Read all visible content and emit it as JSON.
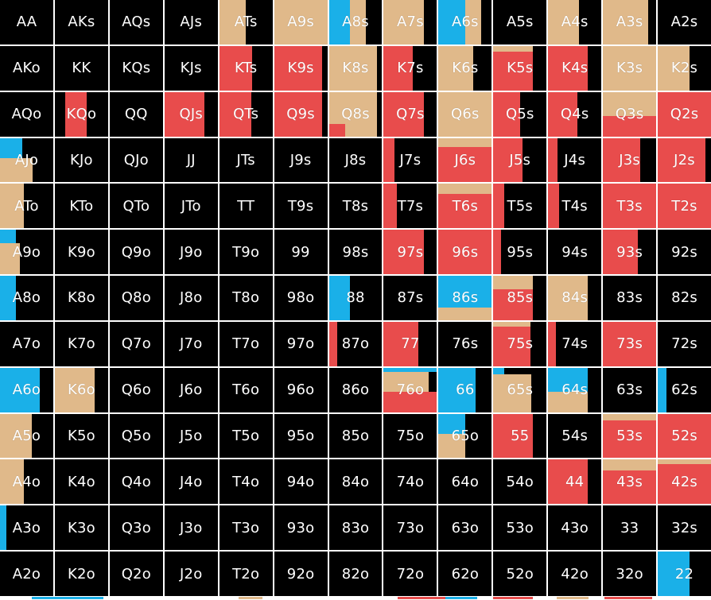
{
  "colors": {
    "fold": "#000000",
    "call": "#e0b98a",
    "raise": "#e84c4c",
    "allin": "#1ab0e8",
    "label": "#ffffff",
    "gridline": "#ffffff"
  },
  "hands": [
    [
      "AA",
      "AKs",
      "AQs",
      "AJs",
      "ATs",
      "A9s",
      "A8s",
      "A7s",
      "A6s",
      "A5s",
      "A4s",
      "A3s",
      "A2s"
    ],
    [
      "AKo",
      "KK",
      "KQs",
      "KJs",
      "KTs",
      "K9s",
      "K8s",
      "K7s",
      "K6s",
      "K5s",
      "K4s",
      "K3s",
      "K2s"
    ],
    [
      "AQo",
      "KQo",
      "QQ",
      "QJs",
      "QTs",
      "Q9s",
      "Q8s",
      "Q7s",
      "Q6s",
      "Q5s",
      "Q4s",
      "Q3s",
      "Q2s"
    ],
    [
      "AJo",
      "KJo",
      "QJo",
      "JJ",
      "JTs",
      "J9s",
      "J8s",
      "J7s",
      "J6s",
      "J5s",
      "J4s",
      "J3s",
      "J2s"
    ],
    [
      "ATo",
      "KTo",
      "QTo",
      "JTo",
      "TT",
      "T9s",
      "T8s",
      "T7s",
      "T6s",
      "T5s",
      "T4s",
      "T3s",
      "T2s"
    ],
    [
      "A9o",
      "K9o",
      "Q9o",
      "J9o",
      "T9o",
      "99",
      "98s",
      "97s",
      "96s",
      "95s",
      "94s",
      "93s",
      "92s"
    ],
    [
      "A8o",
      "K8o",
      "Q8o",
      "J8o",
      "T8o",
      "98o",
      "88",
      "87s",
      "86s",
      "85s",
      "84s",
      "83s",
      "82s"
    ],
    [
      "A7o",
      "K7o",
      "Q7o",
      "J7o",
      "T7o",
      "97o",
      "87o",
      "77",
      "76s",
      "75s",
      "74s",
      "73s",
      "72s"
    ],
    [
      "A6o",
      "K6o",
      "Q6o",
      "J6o",
      "T6o",
      "96o",
      "86o",
      "76o",
      "66",
      "65s",
      "64s",
      "63s",
      "62s"
    ],
    [
      "A5o",
      "K5o",
      "Q5o",
      "J5o",
      "T5o",
      "95o",
      "85o",
      "75o",
      "65o",
      "55",
      "54s",
      "53s",
      "52s"
    ],
    [
      "A4o",
      "K4o",
      "Q4o",
      "J4o",
      "T4o",
      "94o",
      "84o",
      "74o",
      "64o",
      "54o",
      "44",
      "43s",
      "42s"
    ],
    [
      "A3o",
      "K3o",
      "Q3o",
      "J3o",
      "T3o",
      "93o",
      "83o",
      "73o",
      "63o",
      "53o",
      "43o",
      "33",
      "32s"
    ],
    [
      "A2o",
      "K2o",
      "Q2o",
      "J2o",
      "T2o",
      "92o",
      "82o",
      "72o",
      "62o",
      "52o",
      "42o",
      "32o",
      "22"
    ]
  ],
  "fills": {
    "ATs": [
      [
        "call",
        0,
        0,
        0.5,
        1
      ]
    ],
    "A9s": [
      [
        "call",
        0,
        0,
        1,
        1
      ]
    ],
    "A8s": [
      [
        "allin",
        0,
        0,
        0.4,
        1
      ],
      [
        "call",
        0.4,
        0,
        0.3,
        1
      ]
    ],
    "A7s": [
      [
        "call",
        0,
        0,
        0.75,
        1
      ]
    ],
    "A6s": [
      [
        "allin",
        0,
        0,
        0.5,
        1
      ],
      [
        "call",
        0.5,
        0,
        0.3,
        1
      ]
    ],
    "A4s": [
      [
        "call",
        0,
        0,
        0.58,
        1
      ]
    ],
    "A3s": [
      [
        "call",
        0,
        0,
        0.85,
        1
      ]
    ],
    "KTs": [
      [
        "raise",
        0,
        0,
        0.62,
        1
      ]
    ],
    "K9s": [
      [
        "raise",
        0,
        0,
        0.9,
        1
      ]
    ],
    "K8s": [
      [
        "call",
        0,
        0,
        0.9,
        1
      ]
    ],
    "K7s": [
      [
        "raise",
        0,
        0,
        0.55,
        1
      ]
    ],
    "K6s": [
      [
        "call",
        0,
        0,
        0.65,
        1
      ]
    ],
    "K5s": [
      [
        "call",
        0,
        0,
        0.75,
        0.12
      ],
      [
        "raise",
        0,
        0.12,
        0.75,
        0.88
      ]
    ],
    "K4s": [
      [
        "raise",
        0,
        0,
        0.75,
        1
      ]
    ],
    "K3s": [
      [
        "call",
        0,
        0,
        1,
        1
      ]
    ],
    "K2s": [
      [
        "call",
        0,
        0,
        0.6,
        1
      ]
    ],
    "KQo": [
      [
        "raise",
        0.2,
        0,
        0.4,
        1
      ]
    ],
    "QJs": [
      [
        "raise",
        0,
        0,
        0.75,
        1
      ]
    ],
    "QTs": [
      [
        "raise",
        0,
        0,
        0.6,
        1
      ]
    ],
    "Q9s": [
      [
        "raise",
        0,
        0,
        0.9,
        1
      ]
    ],
    "Q8s": [
      [
        "call",
        0,
        0,
        0.9,
        1
      ],
      [
        "raise",
        0,
        0.72,
        0.3,
        0.28
      ]
    ],
    "Q7s": [
      [
        "raise",
        0,
        0,
        0.75,
        1
      ]
    ],
    "Q6s": [
      [
        "call",
        0,
        0,
        1,
        1
      ]
    ],
    "Q5s": [
      [
        "raise",
        0,
        0,
        0.5,
        1
      ]
    ],
    "Q4s": [
      [
        "raise",
        0,
        0,
        0.55,
        1
      ]
    ],
    "Q3s": [
      [
        "call",
        0,
        0,
        1,
        0.55
      ],
      [
        "raise",
        0,
        0.55,
        1,
        0.45
      ]
    ],
    "Q2s": [
      [
        "raise",
        0,
        0,
        1,
        1
      ]
    ],
    "AJo": [
      [
        "allin",
        0,
        0,
        0.42,
        0.45
      ],
      [
        "call",
        0,
        0.45,
        0.62,
        0.55
      ]
    ],
    "J7s": [
      [
        "raise",
        0,
        0,
        0.2,
        1
      ]
    ],
    "J6s": [
      [
        "call",
        0,
        0,
        1,
        0.2
      ],
      [
        "raise",
        0,
        0.2,
        1,
        0.8
      ]
    ],
    "J5s": [
      [
        "raise",
        0,
        0,
        0.55,
        1
      ]
    ],
    "J4s": [
      [
        "raise",
        0,
        0,
        0.17,
        1
      ]
    ],
    "J3s": [
      [
        "raise",
        0,
        0,
        0.7,
        1
      ]
    ],
    "J2s": [
      [
        "raise",
        0,
        0,
        0.9,
        1
      ]
    ],
    "ATo": [
      [
        "call",
        0,
        0,
        0.45,
        1
      ]
    ],
    "T7s": [
      [
        "raise",
        0,
        0,
        0.25,
        1
      ]
    ],
    "T6s": [
      [
        "call",
        0,
        0,
        1,
        0.22
      ],
      [
        "raise",
        0,
        0.22,
        1,
        0.78
      ]
    ],
    "T5s": [
      [
        "raise",
        0,
        0,
        0.2,
        1
      ]
    ],
    "T4s": [
      [
        "raise",
        0,
        0,
        0.2,
        1
      ]
    ],
    "T3s": [
      [
        "raise",
        0,
        0,
        1,
        1
      ]
    ],
    "T2s": [
      [
        "raise",
        0,
        0,
        1,
        1
      ]
    ],
    "A9o": [
      [
        "allin",
        0,
        0,
        0.3,
        0.3
      ],
      [
        "call",
        0,
        0.3,
        0.38,
        0.7
      ]
    ],
    "97s": [
      [
        "raise",
        0,
        0,
        0.75,
        1
      ]
    ],
    "96s": [
      [
        "raise",
        0,
        0,
        1,
        1
      ]
    ],
    "95s": [
      [
        "raise",
        0,
        0,
        0.15,
        1
      ]
    ],
    "93s": [
      [
        "raise",
        0,
        0,
        0.65,
        1
      ]
    ],
    "A8o": [
      [
        "allin",
        0,
        0,
        0.3,
        1
      ]
    ],
    "88": [
      [
        "allin",
        0,
        0,
        0.4,
        1
      ]
    ],
    "86s": [
      [
        "allin",
        0,
        0,
        1,
        0.72
      ],
      [
        "call",
        0,
        0.72,
        1,
        0.28
      ]
    ],
    "85s": [
      [
        "call",
        0,
        0,
        0.75,
        0.3
      ],
      [
        "raise",
        0,
        0.3,
        0.75,
        0.7
      ]
    ],
    "84s": [
      [
        "call",
        0,
        0,
        0.75,
        1
      ]
    ],
    "87o": [
      [
        "raise",
        0,
        0,
        0.15,
        1
      ]
    ],
    "77": [
      [
        "raise",
        0,
        0,
        0.65,
        1
      ]
    ],
    "75s": [
      [
        "call",
        0,
        0,
        0.7,
        0.1
      ],
      [
        "raise",
        0,
        0.1,
        0.7,
        0.9
      ]
    ],
    "74s": [
      [
        "raise",
        0,
        0,
        0.15,
        1
      ]
    ],
    "73s": [
      [
        "raise",
        0,
        0,
        1,
        1
      ]
    ],
    "A6o": [
      [
        "allin",
        0,
        0,
        0.75,
        1
      ]
    ],
    "K6o": [
      [
        "call",
        0,
        0,
        0.75,
        1
      ]
    ],
    "76o": [
      [
        "allin",
        0,
        0,
        1,
        0.1
      ],
      [
        "call",
        0,
        0.1,
        0.85,
        0.45
      ],
      [
        "raise",
        0,
        0.55,
        1,
        0.45
      ]
    ],
    "66": [
      [
        "allin",
        0,
        0,
        0.7,
        1
      ]
    ],
    "65s": [
      [
        "allin",
        0,
        0,
        0.2,
        0.15
      ],
      [
        "call",
        0,
        0.15,
        0.72,
        0.85
      ]
    ],
    "64s": [
      [
        "allin",
        0,
        0,
        0.75,
        0.55
      ],
      [
        "call",
        0,
        0.55,
        0.75,
        0.45
      ]
    ],
    "62s": [
      [
        "allin",
        0,
        0,
        0.17,
        1
      ]
    ],
    "A5o": [
      [
        "call",
        0,
        0,
        0.6,
        1
      ]
    ],
    "65o": [
      [
        "allin",
        0,
        0,
        0.5,
        0.45
      ],
      [
        "call",
        0,
        0.45,
        0.5,
        0.55
      ]
    ],
    "55": [
      [
        "raise",
        0,
        0,
        0.75,
        1
      ]
    ],
    "53s": [
      [
        "call",
        0,
        0,
        1,
        0.15
      ],
      [
        "raise",
        0,
        0.15,
        1,
        0.85
      ]
    ],
    "52s": [
      [
        "raise",
        0,
        0,
        1,
        1
      ]
    ],
    "A4o": [
      [
        "call",
        0,
        0,
        0.45,
        1
      ]
    ],
    "44": [
      [
        "raise",
        0,
        0,
        0.75,
        1
      ]
    ],
    "43s": [
      [
        "call",
        0,
        0,
        1,
        0.25
      ],
      [
        "raise",
        0,
        0.25,
        1,
        0.75
      ]
    ],
    "42s": [
      [
        "call",
        0,
        0,
        1,
        0.1
      ],
      [
        "raise",
        0,
        0.1,
        1,
        0.9
      ]
    ],
    "A3o": [
      [
        "allin",
        0,
        0,
        0.12,
        1
      ]
    ],
    "22": [
      [
        "allin",
        0,
        0,
        0.6,
        1
      ]
    ]
  }
}
